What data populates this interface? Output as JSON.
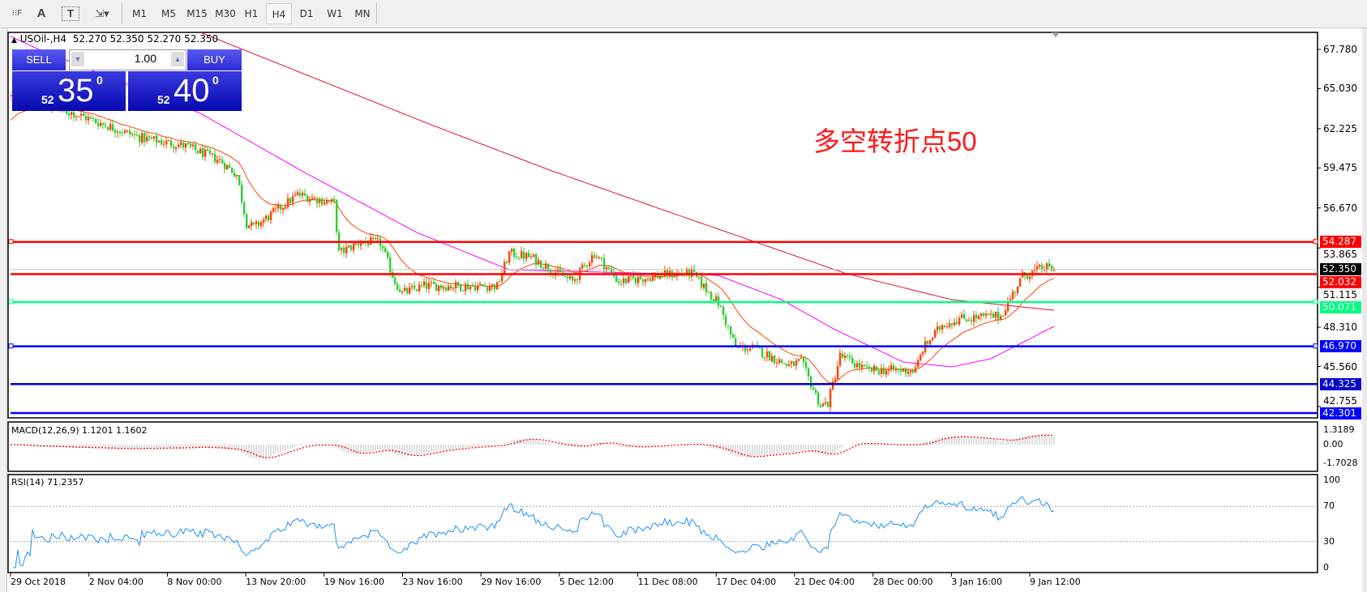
{
  "toolbar": {
    "tools": [
      {
        "name": "fibonacci-grid-icon",
        "glyph": "⁝⁝F"
      },
      {
        "name": "text-icon",
        "glyph": "A"
      },
      {
        "name": "text-label-icon",
        "glyph": "T"
      },
      {
        "name": "arrows-icon",
        "glyph": "⇲▾"
      }
    ],
    "timeframes": [
      "M1",
      "M5",
      "M15",
      "M30",
      "H1",
      "H4",
      "D1",
      "W1",
      "MN"
    ],
    "active_timeframe": "H4"
  },
  "header": {
    "symbol": "USOil-,H4",
    "ohlc": "52.270 52.350 52.270 52.350"
  },
  "trade_panel": {
    "sell_label": "SELL",
    "buy_label": "BUY",
    "lot": "1.00",
    "sell_prefix": "52",
    "sell_main": "35",
    "sell_sup": "0",
    "buy_prefix": "52",
    "buy_main": "40",
    "buy_sup": "0"
  },
  "annotation": "多空转折点50",
  "price_axis": {
    "min": 42.301,
    "max": 67.78,
    "ticks": [
      "67.780",
      "65.030",
      "62.225",
      "59.475",
      "56.670",
      "53.865",
      "51.115",
      "48.310",
      "45.560",
      "42.755"
    ]
  },
  "bid_line": {
    "value": "52.350",
    "color": "#c0c0c0"
  },
  "levels": [
    {
      "value": "54.287",
      "color": "#ff0000"
    },
    {
      "value": "52.032",
      "color": "#ff0000"
    },
    {
      "value": "50.071",
      "color": "#00ff7f"
    },
    {
      "value": "46.970",
      "color": "#0000ff"
    },
    {
      "value": "44.325",
      "color": "#0000cd"
    },
    {
      "value": "42.301",
      "color": "#0000ff"
    }
  ],
  "colors": {
    "bull": "#ff4500",
    "bear": "#32cd32",
    "ma_fast": "#ff4500",
    "ma_mid": "#ff00ff",
    "ma_slow": "#dc143c",
    "rsi": "#1e90ff",
    "macd_hist": "#c0c0c0",
    "macd_signal": "#ff0000"
  },
  "price_path": [
    [
      0,
      64.5
    ],
    [
      26,
      63.3
    ],
    [
      53,
      61.6
    ],
    [
      72,
      61.0
    ],
    [
      86,
      60.0
    ],
    [
      93,
      59.0
    ],
    [
      97,
      55.6
    ],
    [
      100,
      55.3
    ],
    [
      118,
      57.6
    ],
    [
      133,
      57.0
    ],
    [
      135,
      53.5
    ],
    [
      144,
      54.3
    ],
    [
      152,
      54.2
    ],
    [
      158,
      51.5
    ],
    [
      161,
      50.7
    ],
    [
      170,
      51.2
    ],
    [
      200,
      51.2
    ],
    [
      205,
      53.5
    ],
    [
      214,
      53.2
    ],
    [
      231,
      51.5
    ],
    [
      240,
      53.5
    ],
    [
      250,
      51.5
    ],
    [
      270,
      52.0
    ],
    [
      280,
      52.1
    ],
    [
      291,
      50.0
    ],
    [
      298,
      46.9
    ],
    [
      306,
      46.8
    ],
    [
      320,
      45.6
    ],
    [
      325,
      45.9
    ],
    [
      333,
      42.8
    ],
    [
      336,
      43.0
    ],
    [
      341,
      46.3
    ],
    [
      352,
      45.3
    ],
    [
      372,
      45.3
    ],
    [
      375,
      46.8
    ],
    [
      383,
      48.5
    ],
    [
      390,
      48.9
    ],
    [
      398,
      49.0
    ],
    [
      407,
      49.1
    ],
    [
      416,
      51.9
    ],
    [
      425,
      52.5
    ],
    [
      429,
      52.35
    ]
  ],
  "ma_mid_path": [
    [
      0,
      68.7
    ],
    [
      10,
      67.9
    ],
    [
      78,
      63.3
    ],
    [
      121,
      59.15
    ],
    [
      167,
      54.95
    ],
    [
      205,
      52.34
    ],
    [
      269,
      52.06
    ],
    [
      291,
      51.94
    ],
    [
      317,
      50.24
    ],
    [
      339,
      48.14
    ],
    [
      367,
      45.87
    ],
    [
      387,
      45.53
    ],
    [
      403,
      46.1
    ],
    [
      429,
      48.37
    ]
  ],
  "ma_slow_path": [
    [
      0,
      73.5
    ],
    [
      78,
      68.97
    ],
    [
      172,
      62.56
    ],
    [
      222,
      59.3
    ],
    [
      269,
      56.49
    ],
    [
      343,
      52.1
    ],
    [
      387,
      50.24
    ],
    [
      429,
      49.5
    ]
  ],
  "macd": {
    "label": "MACD(12,26,9) 1.1201 1.1602",
    "ticks": [
      "1.3189",
      "0.00",
      "-1.7028"
    ],
    "tick_values": [
      1.3189,
      0,
      -1.7028
    ]
  },
  "rsi": {
    "label": "RSI(14) 71.2357",
    "ticks": [
      "100",
      "70",
      "30",
      "0"
    ],
    "tick_values": [
      100,
      70,
      30,
      0
    ]
  },
  "time_labels": [
    "29 Oct 2018",
    "2 Nov 04:00",
    "8 Nov 00:00",
    "13 Nov 20:00",
    "19 Nov 16:00",
    "23 Nov 16:00",
    "29 Nov 16:00",
    "5 Dec 12:00",
    "11 Dec 08:00",
    "17 Dec 04:00",
    "21 Dec 04:00",
    "28 Dec 00:00",
    "3 Jan 16:00",
    "9 Jan 12:00"
  ]
}
